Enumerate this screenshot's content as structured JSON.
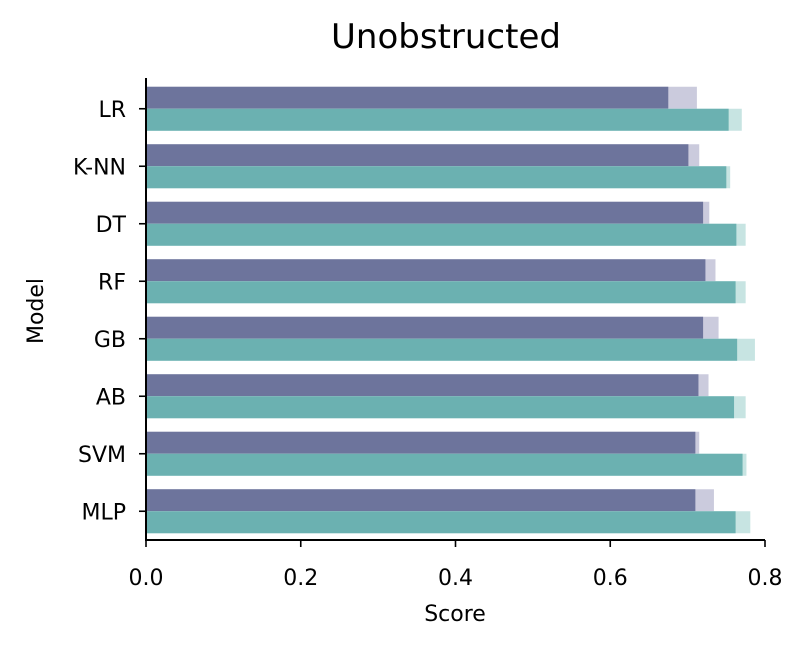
{
  "chart_data": {
    "type": "bar",
    "orientation": "horizontal",
    "title": "Unobstructed",
    "xlabel": "Score",
    "ylabel": "Model",
    "xlim": [
      0.0,
      0.8
    ],
    "xticks": [
      "0.0",
      "0.2",
      "0.4",
      "0.6",
      "0.8"
    ],
    "categories": [
      "LR",
      "K-NN",
      "DT",
      "RF",
      "GB",
      "AB",
      "SVM",
      "MLP"
    ],
    "series": [
      {
        "color": "#6d749c",
        "values": [
          0.675,
          0.701,
          0.72,
          0.723,
          0.72,
          0.714,
          0.71,
          0.71
        ]
      },
      {
        "color": "#cbcbdd",
        "values": [
          0.712,
          0.715,
          0.728,
          0.736,
          0.74,
          0.727,
          0.715,
          0.734
        ]
      },
      {
        "color": "#6bb1b1",
        "values": [
          0.753,
          0.75,
          0.763,
          0.762,
          0.764,
          0.76,
          0.771,
          0.762
        ]
      },
      {
        "color": "#c7e4e2",
        "values": [
          0.77,
          0.755,
          0.775,
          0.775,
          0.787,
          0.775,
          0.776,
          0.781
        ]
      }
    ],
    "grid": false,
    "legend": false
  }
}
